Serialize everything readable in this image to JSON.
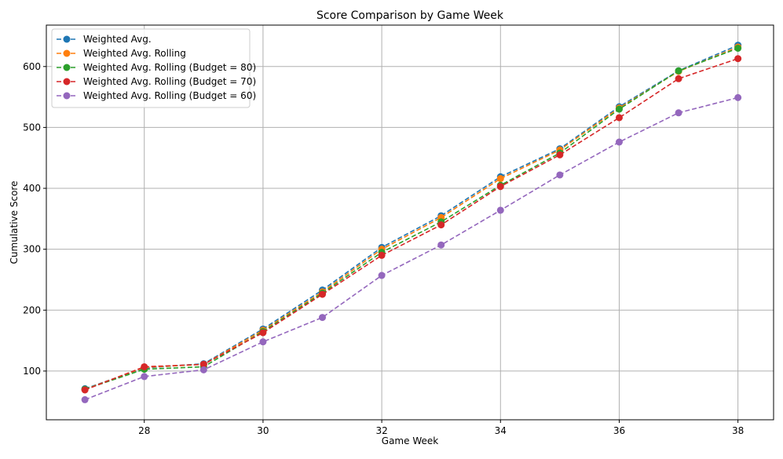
{
  "chart_data": {
    "type": "line",
    "title": "Score Comparison by Game Week",
    "xlabel": "Game Week",
    "ylabel": "Cumulative Score",
    "xlim": [
      26.35,
      38.6
    ],
    "ylim": [
      20,
      668
    ],
    "xticks": [
      28,
      30,
      32,
      34,
      36,
      38
    ],
    "yticks": [
      100,
      200,
      300,
      400,
      500,
      600
    ],
    "grid": true,
    "legend_position": "top-left",
    "line_style": "dashed",
    "marker": "circle",
    "x": [
      27,
      28,
      29,
      30,
      31,
      32,
      33,
      34,
      35,
      36,
      37,
      38
    ],
    "series": [
      {
        "name": "Weighted Avg.",
        "color": "#1f77b4",
        "values": [
          71,
          105,
          112,
          169,
          233,
          303,
          355,
          419,
          465,
          534,
          593,
          635
        ]
      },
      {
        "name": "Weighted Avg. Rolling",
        "color": "#ff7f0e",
        "values": [
          70,
          106,
          111,
          167,
          230,
          300,
          352,
          416,
          463,
          532,
          592,
          632
        ]
      },
      {
        "name": "Weighted Avg. Rolling (Budget = 80)",
        "color": "#2ca02c",
        "values": [
          70,
          103,
          107,
          165,
          228,
          295,
          345,
          405,
          458,
          530,
          593,
          630
        ]
      },
      {
        "name": "Weighted Avg. Rolling (Budget = 70)",
        "color": "#d62728",
        "values": [
          69,
          107,
          111,
          163,
          226,
          290,
          340,
          403,
          455,
          516,
          580,
          613
        ]
      },
      {
        "name": "Weighted Avg. Rolling (Budget = 60)",
        "color": "#9467bd",
        "values": [
          53,
          91,
          102,
          148,
          188,
          257,
          307,
          364,
          422,
          476,
          524,
          549
        ]
      }
    ]
  }
}
